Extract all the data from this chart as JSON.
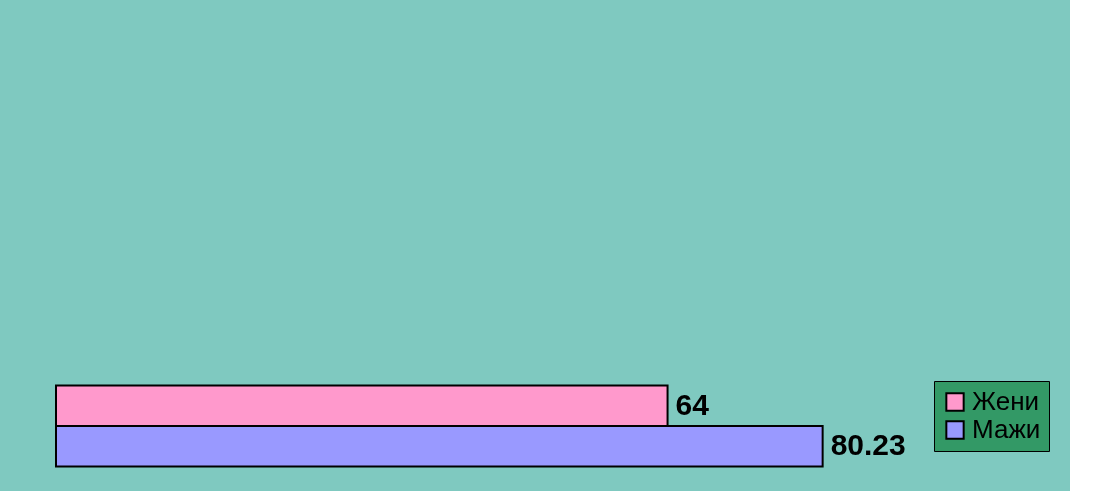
{
  "chart_data": {
    "type": "bar",
    "orientation": "horizontal",
    "categories": [
      null
    ],
    "series": [
      {
        "name": "Жени",
        "color": "#ff99cc",
        "values": [
          64
        ]
      },
      {
        "name": "Мажи",
        "color": "#9999ff",
        "values": [
          80.23
        ]
      }
    ],
    "data_labels": true,
    "legend": "right",
    "tick_labels": false
  }
}
